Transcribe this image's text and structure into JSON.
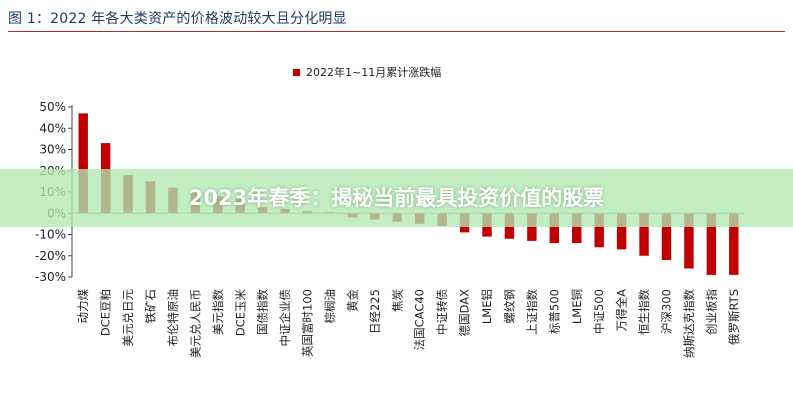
{
  "figure_title": "图 1：2022 年各大类资产的价格波动较大且分化明显",
  "overlay_banner": "2023年春季：揭秘当前最具投资价值的股票",
  "chart_data": {
    "type": "bar",
    "title": "",
    "xlabel": "",
    "ylabel": "",
    "ylim": [
      -30,
      50
    ],
    "yticks": [
      -30,
      -20,
      -10,
      0,
      10,
      20,
      30,
      40,
      50
    ],
    "ytick_labels": [
      "-30%",
      "-20%",
      "-10%",
      "0%",
      "10%",
      "20%",
      "30%",
      "40%",
      "50%"
    ],
    "y_unit": "%",
    "grid": false,
    "legend_position": "top-center",
    "categories": [
      "动力煤",
      "DCE豆粕",
      "美元兑日元",
      "铁矿石",
      "布伦特原油",
      "美元兑人民币",
      "美元指数",
      "DCE玉米",
      "国债指数",
      "中证企业债",
      "英国富时100",
      "棕榈油",
      "黄金",
      "日经225",
      "焦炭",
      "法国CAC40",
      "中证转债",
      "德国DAX",
      "LME铝",
      "螺纹钢",
      "上证指数",
      "标普500",
      "LME铜",
      "中证500",
      "万得全A",
      "恒生指数",
      "沪深300",
      "纳斯达克指数",
      "创业板指",
      "俄罗斯RTS"
    ],
    "series": [
      {
        "name": "2022年1~11月累计涨跌幅",
        "color": "#c00000",
        "values": [
          47,
          33,
          18,
          15,
          12,
          10,
          8,
          7,
          3,
          2,
          1,
          0.5,
          -2,
          -3,
          -4,
          -5,
          -6,
          -9,
          -11,
          -12,
          -13,
          -14,
          -14,
          -16,
          -17,
          -20,
          -22,
          -26,
          -29,
          -29
        ]
      }
    ]
  }
}
